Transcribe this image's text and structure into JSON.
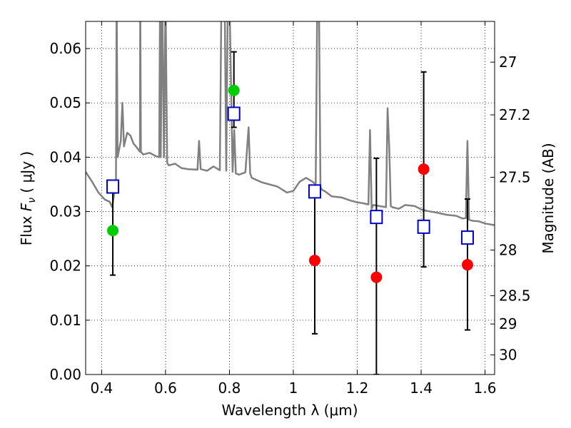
{
  "chart_data": {
    "type": "scatter",
    "xlabel": "Wavelength  λ (μm)",
    "ylabel": "Flux  F_ν  ( μJy )",
    "ylabel_parts": {
      "prefix": "Flux  ",
      "var": "F",
      "sub": "ν",
      "unit": "  ( μJy )"
    },
    "y2label": "Magnitude (AB)",
    "xlim": [
      0.35,
      1.63
    ],
    "ylim": [
      0.0,
      0.065
    ],
    "grid": true,
    "x_ticks": [
      0.4,
      0.6,
      0.8,
      1.0,
      1.2,
      1.4,
      1.6
    ],
    "x_tick_labels": [
      "0.4",
      "0.6",
      "0.8",
      "1",
      "1.2",
      "1.4",
      "1.6"
    ],
    "y_ticks": [
      0.0,
      0.01,
      0.02,
      0.03,
      0.04,
      0.05,
      0.06
    ],
    "y_tick_labels": [
      "0.00",
      "0.01",
      "0.02",
      "0.03",
      "0.04",
      "0.05",
      "0.06"
    ],
    "y2_ticks": [
      {
        "label": "27",
        "flux": 0.0575
      },
      {
        "label": "27.2",
        "flux": 0.0478
      },
      {
        "label": "27.5",
        "flux": 0.0363
      },
      {
        "label": "28",
        "flux": 0.0229
      },
      {
        "label": "28.5",
        "flux": 0.0145
      },
      {
        "label": "29",
        "flux": 0.0093
      },
      {
        "label": "30",
        "flux": 0.0036
      }
    ],
    "colors": {
      "model": "#808080",
      "green_points": "#00cc00",
      "red_points": "#ff0000",
      "model_boxes": "#0000cc",
      "errorbars": "#000000"
    },
    "series": [
      {
        "kind": "model_spectrum",
        "x": [
          0.35,
          0.37,
          0.39,
          0.41,
          0.425,
          0.433,
          0.44,
          0.445,
          0.447,
          0.45,
          0.46,
          0.465,
          0.47,
          0.48,
          0.49,
          0.5,
          0.51,
          0.52,
          0.521,
          0.523,
          0.53,
          0.55,
          0.57,
          0.58,
          0.583,
          0.585,
          0.59,
          0.595,
          0.6,
          0.605,
          0.61,
          0.63,
          0.65,
          0.67,
          0.7,
          0.705,
          0.71,
          0.73,
          0.75,
          0.77,
          0.775,
          0.785,
          0.79,
          0.795,
          0.8,
          0.81,
          0.815,
          0.82,
          0.83,
          0.85,
          0.86,
          0.865,
          0.87,
          0.9,
          0.95,
          0.98,
          1.0,
          1.02,
          1.04,
          1.06,
          1.07,
          1.075,
          1.08,
          1.085,
          1.09,
          1.1,
          1.12,
          1.15,
          1.18,
          1.2,
          1.22,
          1.235,
          1.24,
          1.245,
          1.25,
          1.27,
          1.29,
          1.295,
          1.3,
          1.305,
          1.31,
          1.33,
          1.35,
          1.38,
          1.4,
          1.42,
          1.45,
          1.48,
          1.51,
          1.53,
          1.54,
          1.545,
          1.55,
          1.56,
          1.58,
          1.6,
          1.63
        ],
        "y": [
          0.0373,
          0.0355,
          0.0335,
          0.0322,
          0.0318,
          0.0308,
          0.0335,
          0.036,
          0.07,
          0.04,
          0.043,
          0.05,
          0.042,
          0.0445,
          0.044,
          0.0425,
          0.0418,
          0.041,
          0.07,
          0.041,
          0.0405,
          0.0408,
          0.0402,
          0.04,
          0.07,
          0.04,
          0.07,
          0.04,
          0.07,
          0.039,
          0.0385,
          0.0388,
          0.038,
          0.0378,
          0.0377,
          0.043,
          0.0378,
          0.0375,
          0.0383,
          0.0376,
          0.07,
          0.07,
          0.0375,
          0.07,
          0.07,
          0.0373,
          0.045,
          0.037,
          0.0368,
          0.0372,
          0.0455,
          0.037,
          0.0362,
          0.0354,
          0.0346,
          0.0335,
          0.0338,
          0.0355,
          0.0362,
          0.0355,
          0.035,
          0.07,
          0.07,
          0.0345,
          0.034,
          0.0337,
          0.0328,
          0.0326,
          0.032,
          0.0317,
          0.0315,
          0.0313,
          0.045,
          0.0305,
          0.0312,
          0.031,
          0.0308,
          0.049,
          0.042,
          0.031,
          0.0308,
          0.0305,
          0.0312,
          0.031,
          0.0304,
          0.0301,
          0.0298,
          0.0294,
          0.0292,
          0.0287,
          0.0288,
          0.043,
          0.0285,
          0.0283,
          0.0282,
          0.0278,
          0.0275
        ]
      },
      {
        "kind": "observed_green",
        "points": [
          {
            "x": 0.435,
            "y": 0.0265,
            "err_low": 0.0183,
            "err_high": 0.0352
          },
          {
            "x": 0.814,
            "y": 0.0523,
            "err_low": 0.0455,
            "err_high": 0.0594
          }
        ]
      },
      {
        "kind": "observed_red",
        "points": [
          {
            "x": 1.067,
            "y": 0.021,
            "err_low": 0.0075,
            "err_high": 0.0345
          },
          {
            "x": 1.26,
            "y": 0.0179,
            "err_low": 0.0,
            "err_high": 0.0398
          },
          {
            "x": 1.408,
            "y": 0.0378,
            "err_low": 0.0198,
            "err_high": 0.0557
          },
          {
            "x": 1.545,
            "y": 0.0202,
            "err_low": 0.0082,
            "err_high": 0.0323
          }
        ]
      },
      {
        "kind": "model_boxes",
        "points": [
          {
            "x": 0.435,
            "y": 0.0346
          },
          {
            "x": 0.814,
            "y": 0.048
          },
          {
            "x": 1.067,
            "y": 0.0337
          },
          {
            "x": 1.26,
            "y": 0.029
          },
          {
            "x": 1.408,
            "y": 0.0272
          },
          {
            "x": 1.545,
            "y": 0.0252
          }
        ]
      }
    ]
  }
}
